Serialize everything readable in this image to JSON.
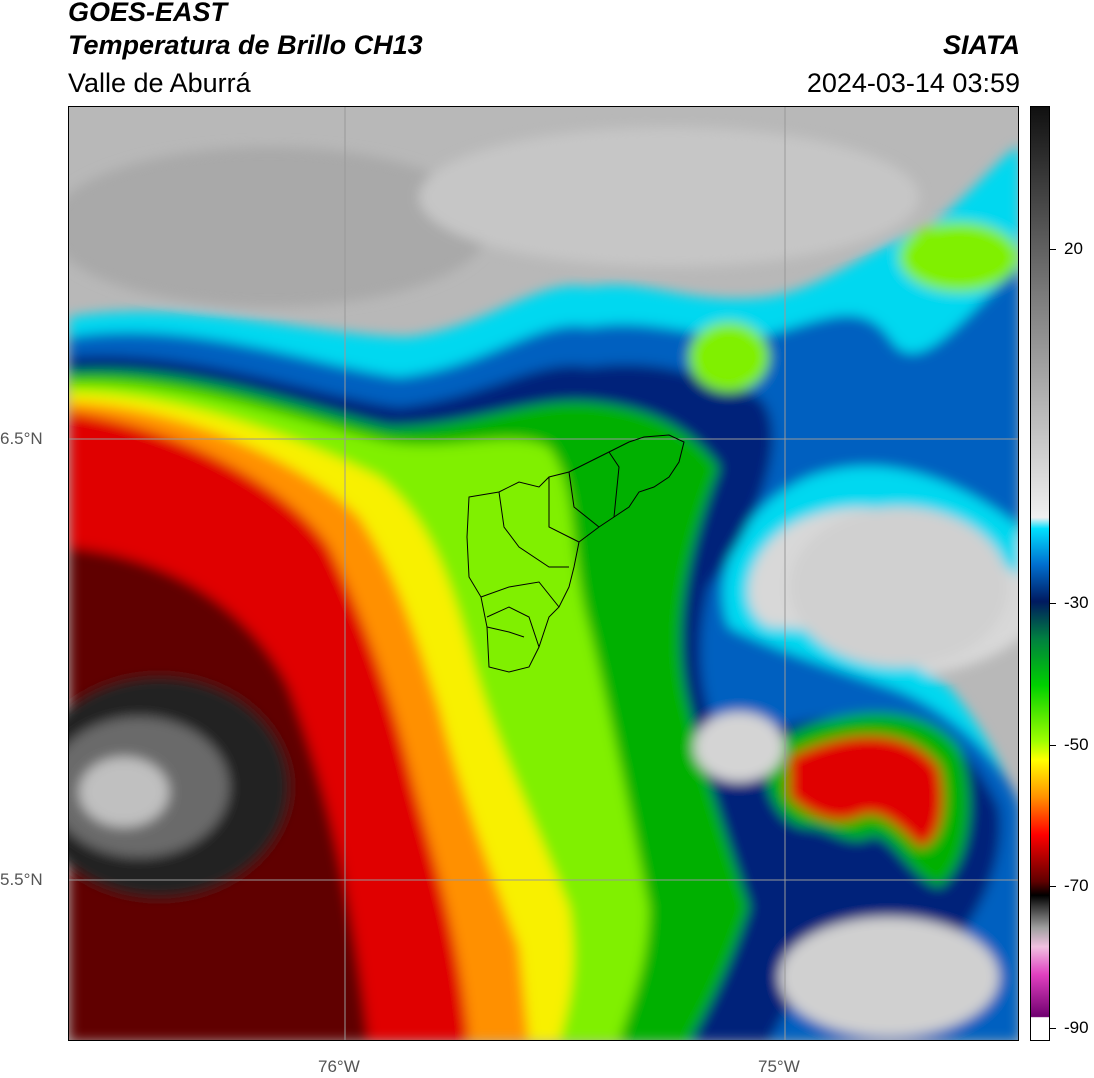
{
  "header": {
    "satellite": "GOES-EAST",
    "product": "Temperatura de Brillo CH13",
    "region": "Valle de Aburrá",
    "organization": "SIATA",
    "datetime": "2024-03-14 03:59"
  },
  "map": {
    "lat_labels": [
      "6.5°N",
      "5.5°N"
    ],
    "lon_labels": [
      "76°W",
      "75°W"
    ],
    "gridlines": true,
    "overlay": "municipality-boundaries"
  },
  "colorbar": {
    "labels": [
      "20",
      "-30",
      "-50",
      "-70",
      "-90"
    ],
    "colors": {
      "warm_gray_top": "#1a1a1a",
      "light_gray": "#e8e8e8",
      "cyan": "#00e0ff",
      "blue": "#0050b0",
      "dark_navy": "#001a60",
      "green": "#00c000",
      "lime": "#90ff00",
      "yellow": "#ffff00",
      "orange": "#ff9000",
      "red": "#e00000",
      "dark_red": "#500000",
      "black": "#000000",
      "magenta": "#e040c0",
      "purple": "#800080"
    }
  }
}
